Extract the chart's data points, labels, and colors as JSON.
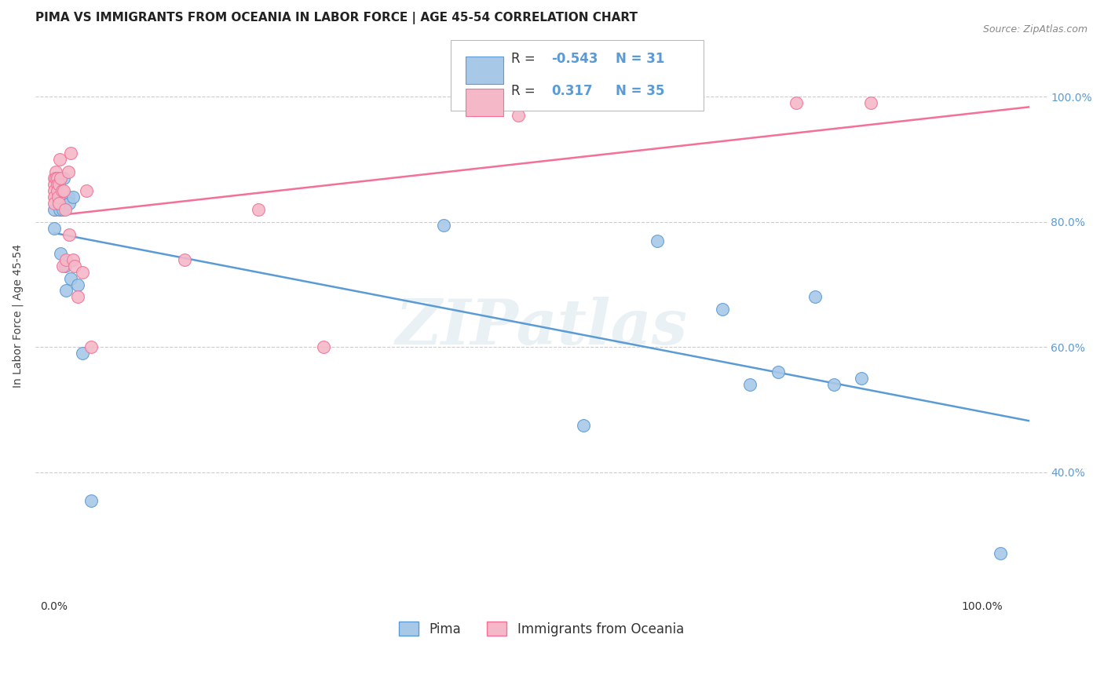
{
  "title": "PIMA VS IMMIGRANTS FROM OCEANIA IN LABOR FORCE | AGE 45-54 CORRELATION CHART",
  "source_text": "Source: ZipAtlas.com",
  "ylabel": "In Labor Force | Age 45-54",
  "xlim": [
    -0.02,
    1.07
  ],
  "ylim": [
    0.2,
    1.1
  ],
  "R_pima": -0.543,
  "N_pima": 31,
  "R_oceania": 0.317,
  "N_oceania": 35,
  "color_pima": "#a8c8e8",
  "color_oceania": "#f4b8c8",
  "color_pima_line": "#5b9bd5",
  "color_oceania_line": "#f47096",
  "color_pima_edge": "#5b9bd5",
  "color_oceania_edge": "#f47096",
  "watermark": "ZIPatlas",
  "pima_x": [
    0.0,
    0.0,
    0.002,
    0.003,
    0.003,
    0.004,
    0.005,
    0.006,
    0.007,
    0.008,
    0.009,
    0.01,
    0.012,
    0.013,
    0.015,
    0.016,
    0.018,
    0.02,
    0.025,
    0.03,
    0.04,
    0.42,
    0.57,
    0.65,
    0.72,
    0.75,
    0.78,
    0.82,
    0.84,
    0.87,
    1.02
  ],
  "pima_y": [
    0.82,
    0.79,
    0.84,
    0.87,
    0.85,
    0.83,
    0.84,
    0.82,
    0.75,
    0.83,
    0.82,
    0.87,
    0.73,
    0.69,
    0.84,
    0.83,
    0.71,
    0.84,
    0.7,
    0.59,
    0.355,
    0.795,
    0.475,
    0.77,
    0.66,
    0.54,
    0.56,
    0.68,
    0.54,
    0.55,
    0.27
  ],
  "oceania_x": [
    0.0,
    0.0,
    0.0,
    0.0,
    0.0,
    0.002,
    0.002,
    0.003,
    0.003,
    0.003,
    0.004,
    0.005,
    0.005,
    0.006,
    0.007,
    0.008,
    0.009,
    0.01,
    0.012,
    0.013,
    0.015,
    0.016,
    0.018,
    0.02,
    0.022,
    0.025,
    0.03,
    0.035,
    0.04,
    0.14,
    0.22,
    0.29,
    0.5,
    0.8,
    0.88
  ],
  "oceania_y": [
    0.87,
    0.86,
    0.85,
    0.84,
    0.83,
    0.88,
    0.87,
    0.87,
    0.86,
    0.85,
    0.84,
    0.86,
    0.83,
    0.9,
    0.87,
    0.85,
    0.73,
    0.85,
    0.82,
    0.74,
    0.88,
    0.78,
    0.91,
    0.74,
    0.73,
    0.68,
    0.72,
    0.85,
    0.6,
    0.74,
    0.82,
    0.6,
    0.97,
    0.99,
    0.99
  ],
  "grid_color": "#cccccc",
  "background_color": "#ffffff",
  "title_fontsize": 11,
  "label_fontsize": 10,
  "tick_fontsize": 10,
  "legend_fontsize": 12
}
